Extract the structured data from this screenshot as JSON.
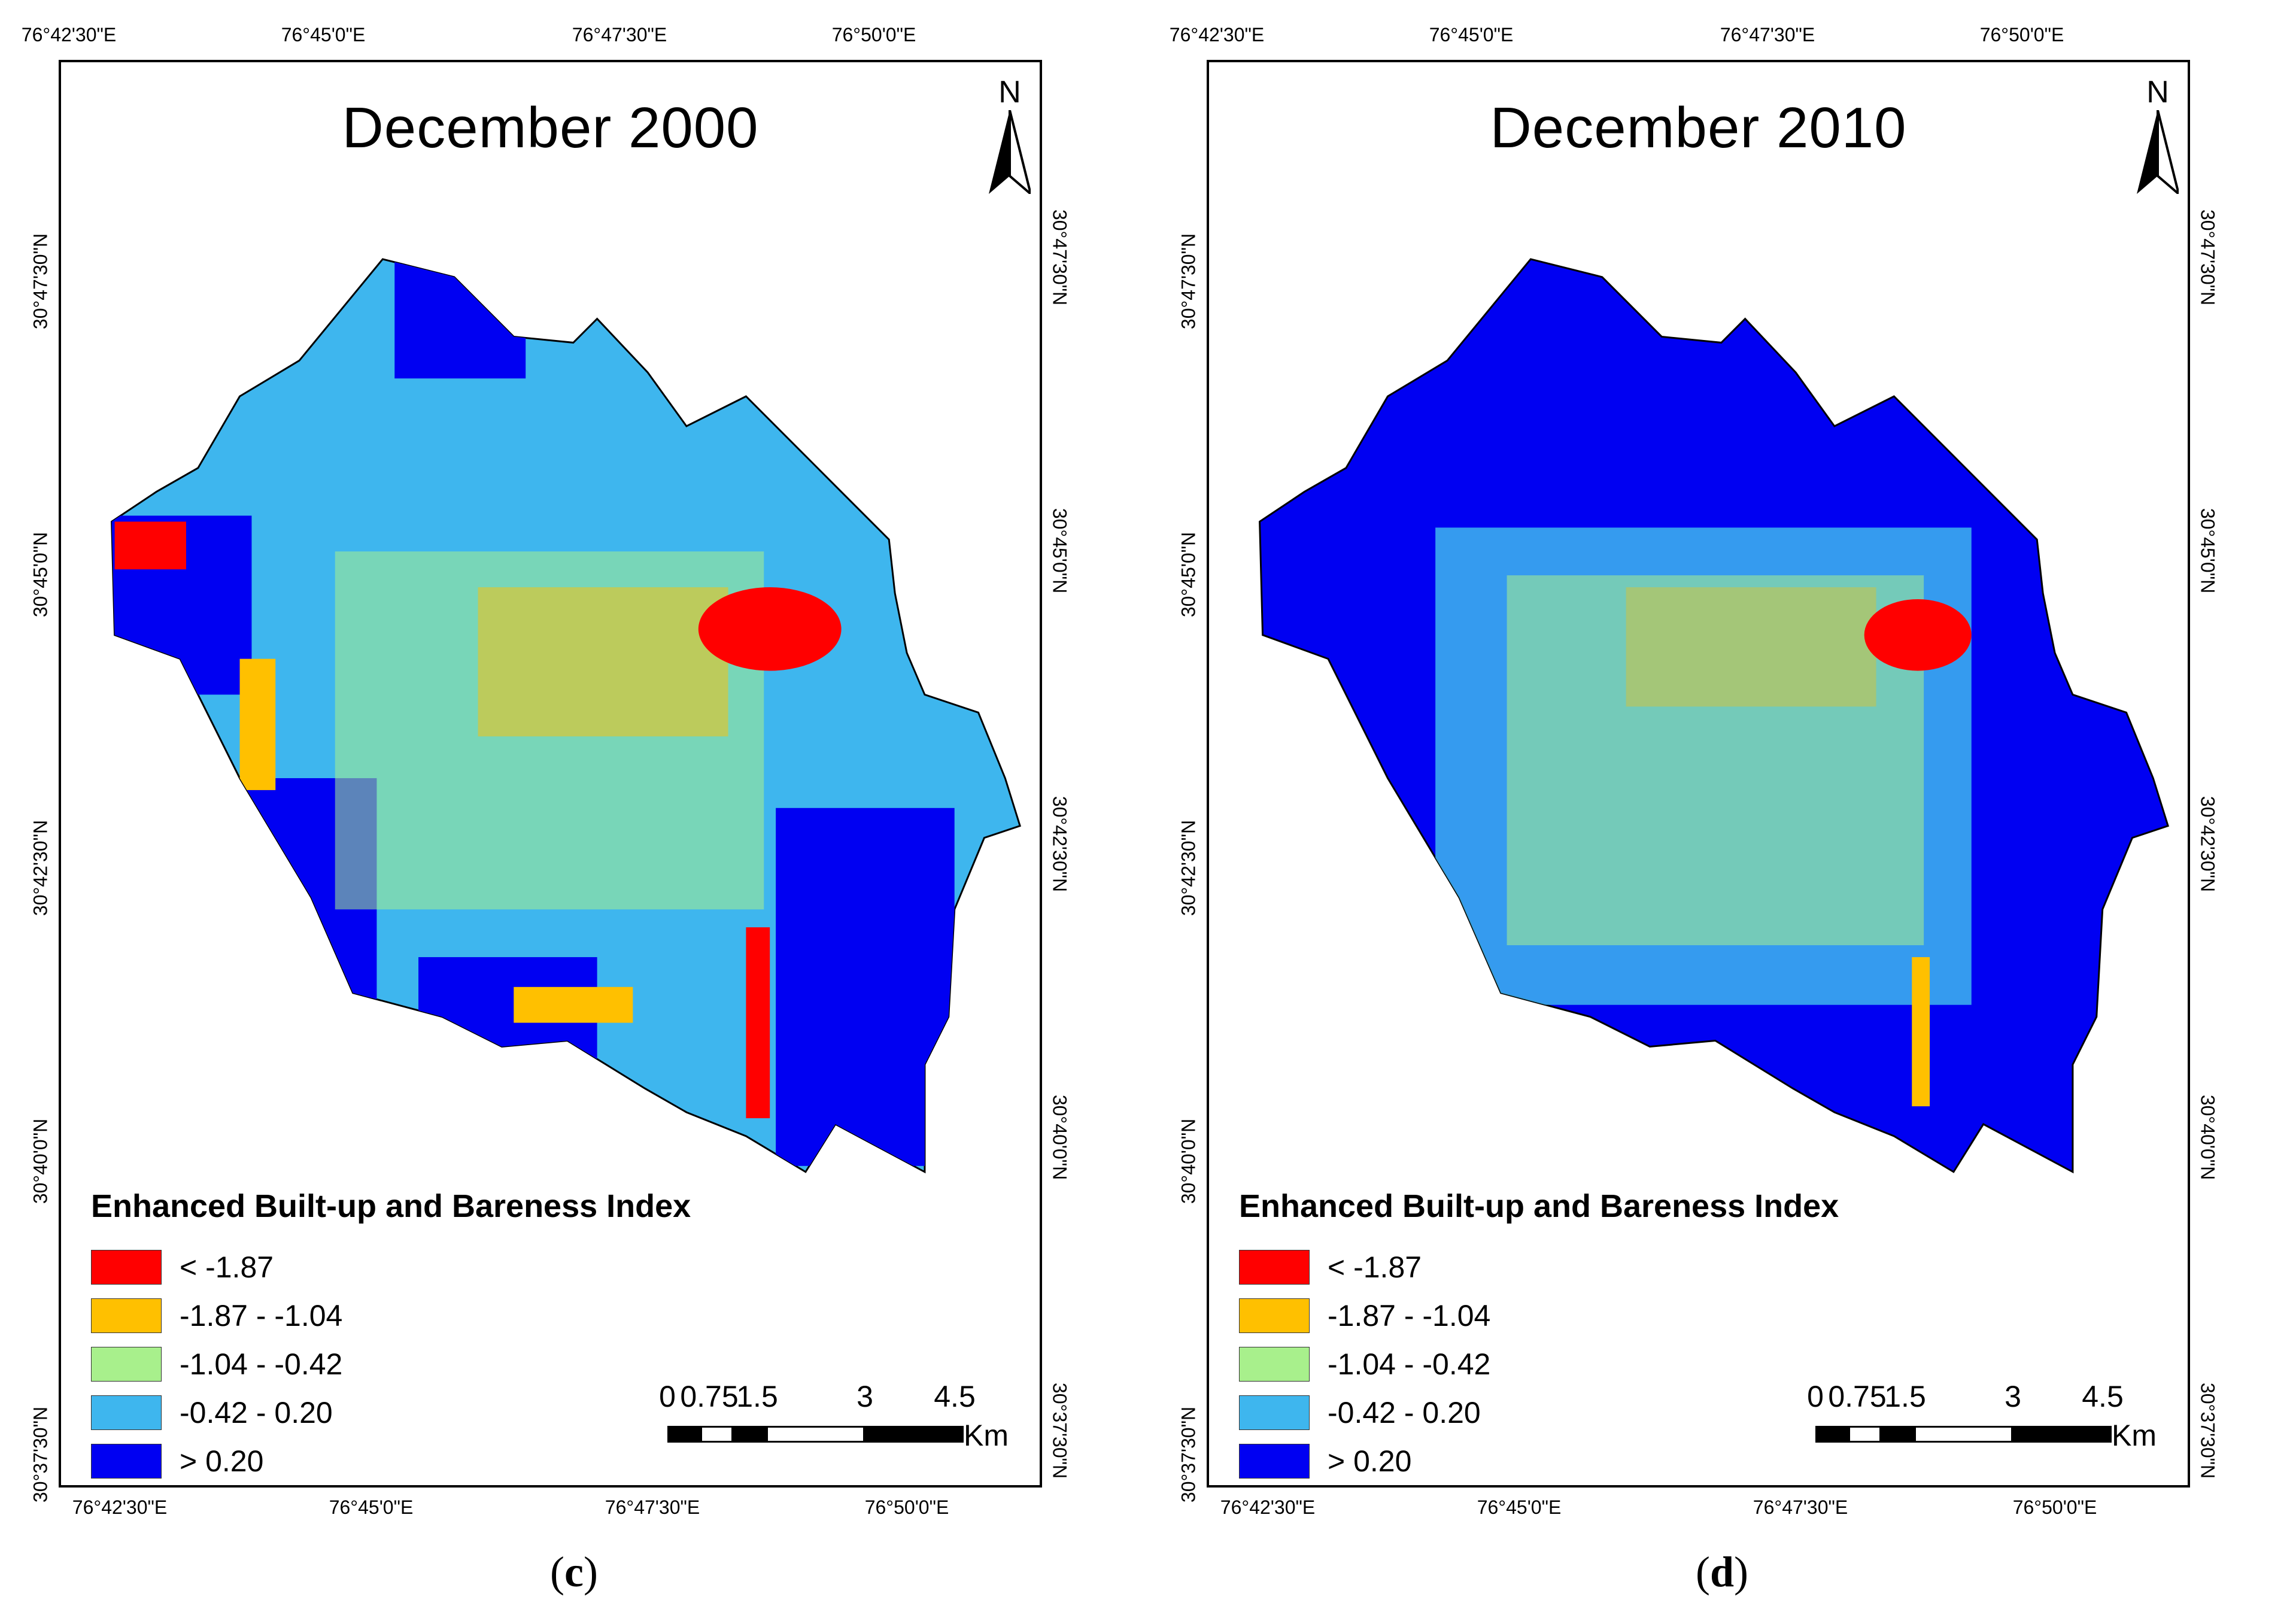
{
  "legend_title": "Enhanced Built-up and Bareness Index",
  "legend_classes": [
    {
      "label": "< -1.87",
      "color": "#ff0000"
    },
    {
      "label": "-1.87 - -1.04",
      "color": "#ffc000"
    },
    {
      "label": "-1.04 - -0.42",
      "color": "#a8f08c"
    },
    {
      "label": "-0.42 - 0.20",
      "color": "#3eb6ee"
    },
    {
      "label": "> 0.20",
      "color": "#0000f2"
    }
  ],
  "north_label": "N",
  "scale": {
    "labels": [
      "0",
      "0.75",
      "1.5",
      "3",
      "4.5"
    ],
    "unit": "Km"
  },
  "grid": {
    "lon_top": [
      "76°42'30\"E",
      "76°45'0\"E",
      "76°47'30\"E",
      "76°50'0\"E"
    ],
    "lon_bottom": [
      "76°42'30\"E",
      "76°45'0\"E",
      "76°47'30\"E",
      "76°50'0\"E"
    ],
    "lat": [
      "30°47'30\"N",
      "30°45'0\"N",
      "30°42'30\"N",
      "30°40'0\"N",
      "30°37'30\"N"
    ]
  },
  "panels": [
    {
      "title": "December 2000",
      "caption_letter": "c",
      "dominant_color": "#3eb6ee"
    },
    {
      "title": "December 2010",
      "caption_letter": "d",
      "dominant_color": "#0000f2"
    }
  ]
}
